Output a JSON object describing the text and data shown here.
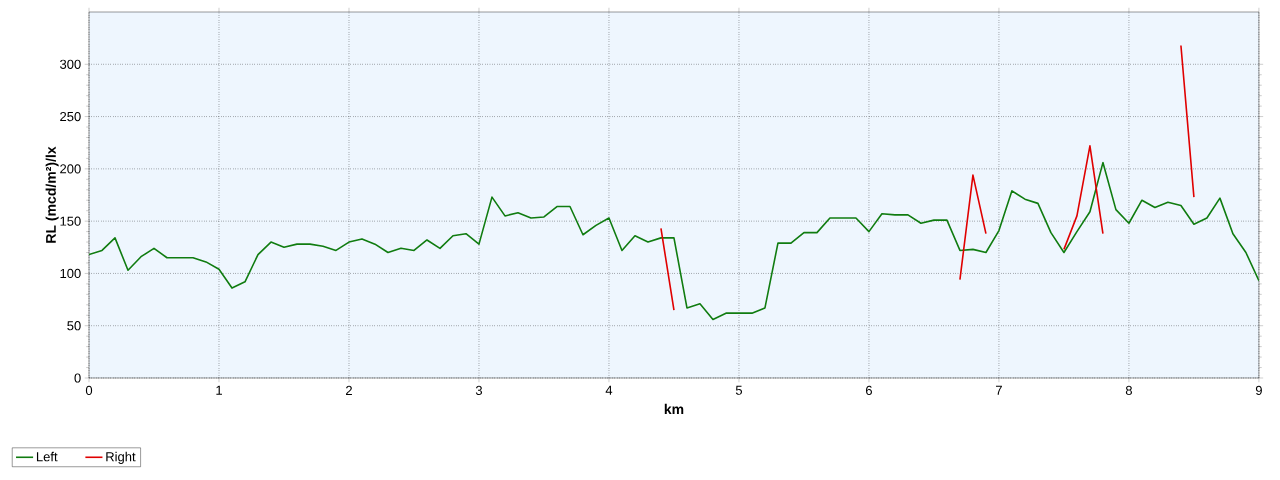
{
  "chart_data": {
    "type": "line",
    "xlabel": "km",
    "ylabel": "RL (mcd/m²)/lx",
    "x": [
      0,
      0.1,
      0.2,
      0.3,
      0.4,
      0.5,
      0.6,
      0.7,
      0.8,
      0.9,
      1,
      1.1,
      1.2,
      1.3,
      1.4,
      1.5,
      1.6,
      1.7,
      1.8,
      1.9,
      2,
      2.1,
      2.2,
      2.3,
      2.4,
      2.5,
      2.6,
      2.7,
      2.8,
      2.9,
      3,
      3.1,
      3.2,
      3.3,
      3.4,
      3.5,
      3.6,
      3.7,
      3.8,
      3.9,
      4,
      4.1,
      4.2,
      4.3,
      4.4,
      4.5,
      4.6,
      4.7,
      4.8,
      4.9,
      5,
      5.1,
      5.2,
      5.3,
      5.4,
      5.5,
      5.6,
      5.7,
      5.8,
      5.9,
      6,
      6.1,
      6.2,
      6.3,
      6.4,
      6.5,
      6.6,
      6.7,
      6.8,
      6.9,
      7,
      7.1,
      7.2,
      7.3,
      7.4,
      7.5,
      7.6,
      7.7,
      7.8,
      7.9,
      8,
      8.1,
      8.2,
      8.3,
      8.4,
      8.5,
      8.6,
      8.7,
      8.8,
      8.9,
      9
    ],
    "series": [
      {
        "name": "Left",
        "color": "#107c10",
        "values": [
          118,
          122,
          134,
          103,
          116,
          124,
          115,
          115,
          115,
          111,
          104,
          86,
          92,
          118,
          130,
          125,
          128,
          128,
          126,
          122,
          130,
          133,
          128,
          120,
          124,
          122,
          132,
          124,
          136,
          138,
          128,
          173,
          155,
          158,
          153,
          154,
          164,
          164,
          137,
          146,
          153,
          122,
          136,
          130,
          134,
          134,
          67,
          71,
          56,
          62,
          62,
          62,
          67,
          129,
          129,
          139,
          139,
          153,
          153,
          153,
          140,
          157,
          156,
          156,
          148,
          151,
          151,
          122,
          123,
          120,
          141,
          179,
          171,
          167,
          139,
          120,
          140,
          159,
          206,
          161,
          148,
          170,
          163,
          168,
          165,
          147,
          153,
          172,
          138,
          120,
          93
        ]
      },
      {
        "name": "Right",
        "color": "#e00000",
        "x": [
          4.4,
          4.5,
          4.6,
          6.7,
          6.8,
          6.9,
          7.0,
          7.5,
          7.6,
          7.7,
          7.8,
          7.9,
          8.4,
          8.5
        ],
        "values": [
          143,
          65,
          null,
          94,
          194,
          138,
          null,
          123,
          155,
          222,
          138,
          null,
          318,
          173
        ]
      }
    ],
    "xlim": [
      0,
      9
    ],
    "ylim": [
      0,
      350
    ],
    "xticks": [
      0,
      1,
      2,
      3,
      4,
      5,
      6,
      7,
      8,
      9
    ],
    "yticks": [
      0,
      50,
      100,
      150,
      200,
      250,
      300
    ],
    "grid": true,
    "legend": "bottom left",
    "line_style": "solid"
  }
}
